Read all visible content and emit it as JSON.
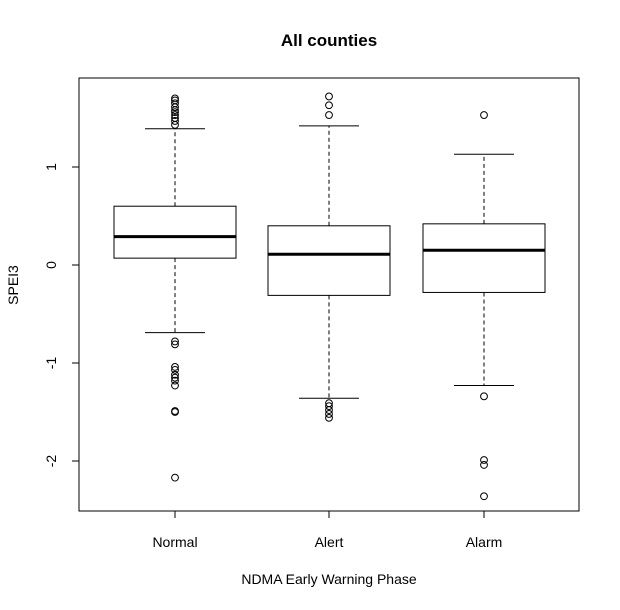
{
  "chart_data": {
    "type": "boxplot",
    "title": "All counties",
    "xlabel": "NDMA Early Warning Phase",
    "ylabel": "SPEI3",
    "ylim": [
      -2.5,
      1.85
    ],
    "yticks": [
      -2,
      -1,
      0,
      1
    ],
    "ytick_labels": [
      "-2",
      "-1",
      "0",
      "1"
    ],
    "grid": false,
    "legend": "none",
    "categories": [
      "Normal",
      "Alert",
      "Alarm"
    ],
    "boxes": [
      {
        "category": "Normal",
        "whisker_low": -0.69,
        "q1": 0.07,
        "median": 0.29,
        "q3": 0.6,
        "whisker_high": 1.39,
        "outliers": [
          1.7,
          1.68,
          1.65,
          1.61,
          1.58,
          1.56,
          1.53,
          1.5,
          1.47,
          1.43,
          -0.78,
          -0.81,
          -1.04,
          -1.07,
          -1.12,
          -1.15,
          -1.18,
          -1.23,
          -1.49,
          -1.5,
          -2.17
        ]
      },
      {
        "category": "Alert",
        "whisker_low": -1.36,
        "q1": -0.31,
        "median": 0.11,
        "q3": 0.4,
        "whisker_high": 1.42,
        "outliers": [
          1.72,
          1.63,
          1.53,
          -1.41,
          -1.44,
          -1.48,
          -1.52,
          -1.56
        ]
      },
      {
        "category": "Alarm",
        "whisker_low": -1.23,
        "q1": -0.28,
        "median": 0.15,
        "q3": 0.42,
        "whisker_high": 1.13,
        "outliers": [
          1.53,
          -1.34,
          -1.99,
          -2.04,
          -2.36
        ]
      }
    ]
  }
}
